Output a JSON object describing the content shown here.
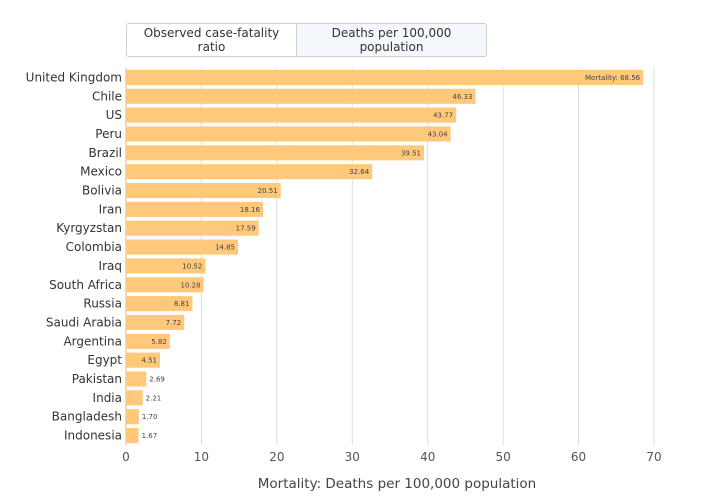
{
  "toggle": {
    "options": [
      "Observed case-fatality ratio",
      "Deaths per 100,000 population"
    ],
    "selected": "Deaths per 100,000 population"
  },
  "chart_data": {
    "type": "bar",
    "orientation": "horizontal",
    "categories": [
      "United Kingdom",
      "Chile",
      "US",
      "Peru",
      "Brazil",
      "Mexico",
      "Bolivia",
      "Iran",
      "Kyrgyzstan",
      "Colombia",
      "Iraq",
      "South Africa",
      "Russia",
      "Saudi Arabia",
      "Argentina",
      "Egypt",
      "Pakistan",
      "India",
      "Bangladesh",
      "Indonesia"
    ],
    "values": [
      68.56,
      46.33,
      43.77,
      43.04,
      39.51,
      32.64,
      20.51,
      18.16,
      17.59,
      14.85,
      10.52,
      10.28,
      8.81,
      7.72,
      5.82,
      4.51,
      2.69,
      2.21,
      1.7,
      1.67
    ],
    "data_labels": [
      "Mortality: 68.56",
      "46.33",
      "43.77",
      "43.04",
      "39.51",
      "32.64",
      "20.51",
      "18.16",
      "17.59",
      "14.85",
      "10.52",
      "10.28",
      "8.81",
      "7.72",
      "5.82",
      "4.51",
      "2.69",
      "2.21",
      "1.70",
      "1.67"
    ],
    "xlabel": "Mortality: Deaths per 100,000 population",
    "xlim": [
      0,
      70
    ],
    "xticks": [
      0,
      10,
      20,
      30,
      40,
      50,
      60,
      70
    ],
    "grid": true,
    "bar_color": "#ffc87a"
  }
}
